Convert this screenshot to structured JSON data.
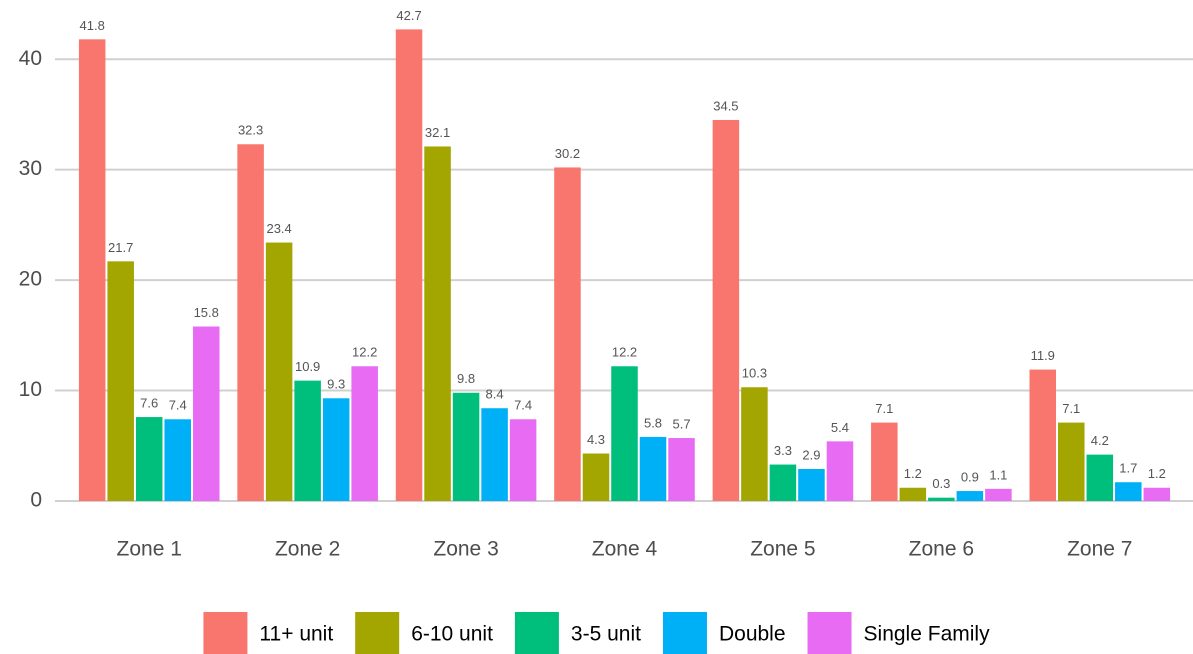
{
  "chart_data": {
    "type": "bar",
    "categories": [
      "Zone 1",
      "Zone 2",
      "Zone 3",
      "Zone 4",
      "Zone 5",
      "Zone 6",
      "Zone 7"
    ],
    "series": [
      {
        "name": "11+ unit",
        "color": "#F8766D",
        "values": [
          41.8,
          32.3,
          42.7,
          30.2,
          34.5,
          7.1,
          11.9
        ]
      },
      {
        "name": "6-10 unit",
        "color": "#A3A500",
        "values": [
          21.7,
          23.4,
          32.1,
          4.3,
          10.3,
          1.2,
          7.1
        ]
      },
      {
        "name": "3-5 unit",
        "color": "#00BF7D",
        "values": [
          7.6,
          10.9,
          9.8,
          12.2,
          3.3,
          0.3,
          4.2
        ]
      },
      {
        "name": "Double",
        "color": "#00B0F6",
        "values": [
          7.4,
          9.3,
          8.4,
          5.8,
          2.9,
          0.9,
          1.7
        ]
      },
      {
        "name": "Single Family",
        "color": "#E76BF3",
        "values": [
          15.8,
          12.2,
          7.4,
          5.7,
          5.4,
          1.1,
          1.2
        ]
      }
    ],
    "ylim": [
      0,
      45
    ],
    "yticks": [
      0,
      10,
      20,
      30,
      40
    ],
    "grid": true,
    "legend": "bottom"
  }
}
